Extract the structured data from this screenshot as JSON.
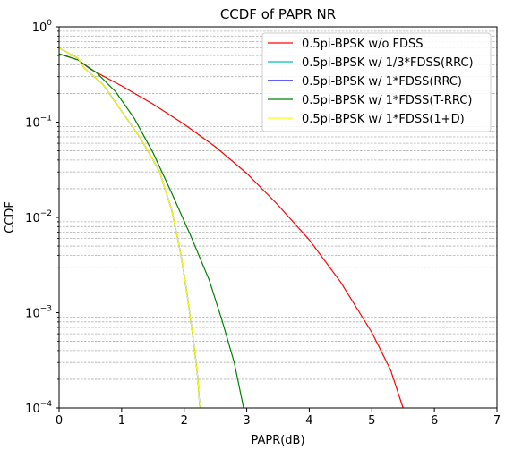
{
  "chart_data": {
    "type": "line",
    "title": "CCDF of PAPR NR",
    "xlabel": "PAPR(dB)",
    "ylabel": "CCDF",
    "xlim": [
      0,
      7
    ],
    "ylim": [
      0.0001,
      1
    ],
    "yscale": "log",
    "grid": "minor-y",
    "legend_position": "top-right",
    "x_ticks": [
      "0",
      "1",
      "2",
      "3",
      "4",
      "5",
      "6",
      "7"
    ],
    "y_ticks": [
      {
        "base": "10",
        "exp": "0"
      },
      {
        "base": "10",
        "exp": "−1"
      },
      {
        "base": "10",
        "exp": "−2"
      },
      {
        "base": "10",
        "exp": "−3"
      },
      {
        "base": "10",
        "exp": "−4"
      }
    ],
    "series": [
      {
        "name": "0.5pi-BPSK w/o FDSS",
        "color": "#ff0000",
        "points": [
          [
            0,
            0.52
          ],
          [
            0.3,
            0.45
          ],
          [
            0.5,
            0.36
          ],
          [
            1.0,
            0.24
          ],
          [
            1.5,
            0.155
          ],
          [
            2.0,
            0.095
          ],
          [
            2.5,
            0.055
          ],
          [
            3.0,
            0.029
          ],
          [
            3.5,
            0.0135
          ],
          [
            4.0,
            0.0058
          ],
          [
            4.5,
            0.0021
          ],
          [
            5.0,
            0.00062
          ],
          [
            5.3,
            0.00025
          ],
          [
            5.5,
            0.0001
          ]
        ]
      },
      {
        "name": "0.5pi-BPSK w/ 1/3*FDSS(RRC)",
        "color": "#00bfbf",
        "points": [
          [
            0,
            0.6
          ],
          [
            0.3,
            0.47
          ],
          [
            0.4,
            0.37
          ],
          [
            0.7,
            0.25
          ],
          [
            1.0,
            0.13
          ],
          [
            1.3,
            0.068
          ],
          [
            1.6,
            0.031
          ],
          [
            1.8,
            0.012
          ],
          [
            1.95,
            0.004
          ],
          [
            2.05,
            0.0015
          ],
          [
            2.15,
            0.0005
          ],
          [
            2.22,
            0.0002
          ],
          [
            2.25,
            0.0001
          ]
        ]
      },
      {
        "name": "0.5pi-BPSK w/ 1*FDSS(RRC)",
        "color": "#0000ff",
        "points": [
          [
            0,
            0.6
          ],
          [
            0.3,
            0.47
          ],
          [
            0.4,
            0.37
          ],
          [
            0.7,
            0.25
          ],
          [
            1.0,
            0.13
          ],
          [
            1.3,
            0.068
          ],
          [
            1.6,
            0.031
          ],
          [
            1.8,
            0.012
          ],
          [
            1.95,
            0.004
          ],
          [
            2.05,
            0.0015
          ],
          [
            2.15,
            0.0005
          ],
          [
            2.22,
            0.0002
          ],
          [
            2.25,
            0.0001
          ]
        ]
      },
      {
        "name": "0.5pi-BPSK w/ 1*FDSS(T-RRC)",
        "color": "#008000",
        "points": [
          [
            0,
            0.52
          ],
          [
            0.3,
            0.45
          ],
          [
            0.6,
            0.33
          ],
          [
            0.9,
            0.21
          ],
          [
            1.2,
            0.11
          ],
          [
            1.5,
            0.048
          ],
          [
            1.8,
            0.018
          ],
          [
            2.1,
            0.0065
          ],
          [
            2.4,
            0.0022
          ],
          [
            2.6,
            0.00085
          ],
          [
            2.8,
            0.0003
          ],
          [
            2.95,
            0.0001
          ]
        ]
      },
      {
        "name": "0.5pi-BPSK w/ 1*FDSS(1+D)",
        "color": "#ffff00",
        "points": [
          [
            0,
            0.6
          ],
          [
            0.3,
            0.47
          ],
          [
            0.4,
            0.37
          ],
          [
            0.7,
            0.25
          ],
          [
            1.0,
            0.13
          ],
          [
            1.3,
            0.068
          ],
          [
            1.6,
            0.031
          ],
          [
            1.8,
            0.012
          ],
          [
            1.95,
            0.004
          ],
          [
            2.05,
            0.0015
          ],
          [
            2.15,
            0.0005
          ],
          [
            2.22,
            0.0002
          ],
          [
            2.25,
            0.0001
          ]
        ]
      }
    ]
  }
}
